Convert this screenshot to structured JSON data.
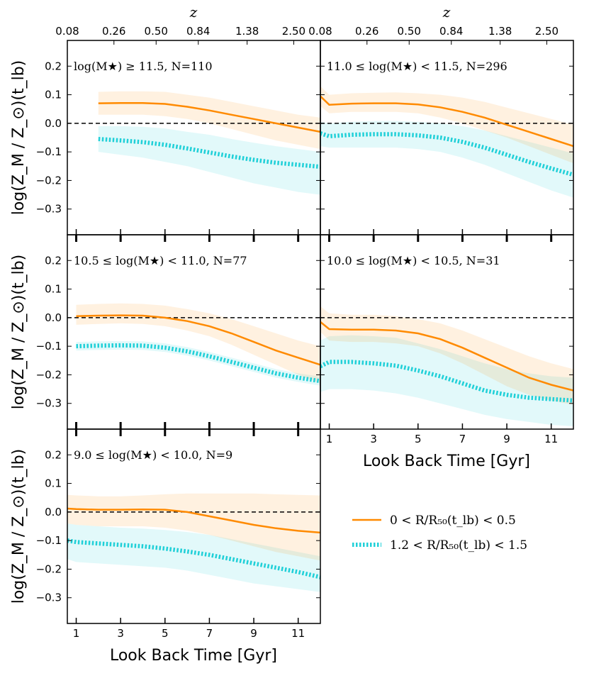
{
  "chart_data": {
    "type": "line",
    "title": "",
    "xlabel": "Look Back Time [Gyr]",
    "ylabel": "log(Z_M / Z_⊙)(t_lb)",
    "top_axis_label": "z",
    "xlim": [
      0.6,
      12.0
    ],
    "ylim": [
      -0.39,
      0.29
    ],
    "xticks": [
      1,
      3,
      5,
      7,
      9,
      11
    ],
    "xtick_labels": [
      "1",
      "3",
      "5",
      "7",
      "9",
      "11"
    ],
    "yticks": [
      -0.3,
      -0.2,
      -0.1,
      0.0,
      0.1,
      0.2
    ],
    "ytick_labels": [
      "−0.3",
      "−0.2",
      "−0.1",
      "0.0",
      "0.1",
      "0.2"
    ],
    "top_ticks": [
      {
        "t": 0.6,
        "label": "0.08"
      },
      {
        "t": 2.7,
        "label": "0.26"
      },
      {
        "t": 4.6,
        "label": "0.50"
      },
      {
        "t": 6.5,
        "label": "0.84"
      },
      {
        "t": 8.7,
        "label": "1.38"
      },
      {
        "t": 10.8,
        "label": "2.50"
      }
    ],
    "reference_line": 0.0,
    "colors": {
      "inner": "#ff8a00",
      "outer": "#20d0d8"
    },
    "legend": {
      "location": "right",
      "entries": [
        {
          "label": "0 < R/R₅₀(t_lb) < 0.5",
          "style": "solid",
          "series": "inner"
        },
        {
          "label": "1.2 < R/R₅₀(t_lb) < 1.5",
          "style": "dotted",
          "series": "outer"
        }
      ]
    },
    "panels": [
      {
        "id": "p1",
        "label": "log(M★) ≥ 11.5, N=110",
        "x": [
          2,
          3,
          4,
          5,
          6,
          7,
          8,
          9,
          10,
          11,
          12
        ],
        "inner": {
          "mid": [
            0.07,
            0.071,
            0.071,
            0.068,
            0.058,
            0.045,
            0.03,
            0.015,
            0.0,
            -0.015,
            -0.03
          ],
          "lo": [
            0.03,
            0.03,
            0.03,
            0.025,
            0.015,
            0.0,
            -0.02,
            -0.04,
            -0.06,
            -0.075,
            -0.09
          ],
          "hi": [
            0.11,
            0.112,
            0.112,
            0.11,
            0.1,
            0.09,
            0.075,
            0.06,
            0.045,
            0.03,
            0.02
          ]
        },
        "outer": {
          "mid": [
            -0.055,
            -0.06,
            -0.066,
            -0.075,
            -0.088,
            -0.102,
            -0.116,
            -0.128,
            -0.138,
            -0.145,
            -0.152
          ],
          "lo": [
            -0.1,
            -0.11,
            -0.12,
            -0.135,
            -0.15,
            -0.17,
            -0.19,
            -0.21,
            -0.225,
            -0.24,
            -0.25
          ],
          "hi": [
            -0.01,
            -0.01,
            -0.012,
            -0.018,
            -0.03,
            -0.04,
            -0.055,
            -0.068,
            -0.08,
            -0.09,
            -0.1
          ]
        }
      },
      {
        "id": "p2",
        "label": "11.0 ≤ log(M★) < 11.5, N=296",
        "x": [
          0.6,
          1,
          2,
          3,
          4,
          5,
          6,
          7,
          8,
          9,
          10,
          11,
          12
        ],
        "inner": {
          "mid": [
            0.095,
            0.065,
            0.069,
            0.07,
            0.07,
            0.066,
            0.056,
            0.04,
            0.02,
            -0.005,
            -0.03,
            -0.055,
            -0.08
          ],
          "lo": [
            0.06,
            0.035,
            0.04,
            0.04,
            0.04,
            0.035,
            0.02,
            0.0,
            -0.025,
            -0.05,
            -0.08,
            -0.11,
            -0.14
          ],
          "hi": [
            0.13,
            0.1,
            0.105,
            0.107,
            0.108,
            0.105,
            0.1,
            0.09,
            0.075,
            0.055,
            0.035,
            0.015,
            -0.005
          ]
        },
        "outer": {
          "mid": [
            -0.035,
            -0.045,
            -0.04,
            -0.038,
            -0.038,
            -0.042,
            -0.05,
            -0.065,
            -0.085,
            -0.11,
            -0.135,
            -0.158,
            -0.18
          ],
          "lo": [
            -0.08,
            -0.085,
            -0.085,
            -0.085,
            -0.085,
            -0.09,
            -0.1,
            -0.12,
            -0.145,
            -0.175,
            -0.205,
            -0.235,
            -0.26
          ],
          "hi": [
            0.005,
            0.0,
            0.005,
            0.008,
            0.008,
            0.005,
            0.0,
            -0.01,
            -0.025,
            -0.045,
            -0.065,
            -0.085,
            -0.105
          ]
        }
      },
      {
        "id": "p3",
        "label": "10.5 ≤ log(M★) < 11.0, N=77",
        "x": [
          1,
          2,
          3,
          4,
          5,
          6,
          7,
          8,
          9,
          10,
          11,
          12
        ],
        "inner": {
          "mid": [
            0.005,
            0.007,
            0.008,
            0.007,
            0.0,
            -0.012,
            -0.03,
            -0.055,
            -0.085,
            -0.115,
            -0.14,
            -0.165
          ],
          "lo": [
            -0.025,
            -0.022,
            -0.02,
            -0.022,
            -0.03,
            -0.045,
            -0.065,
            -0.095,
            -0.13,
            -0.165,
            -0.2,
            -0.23
          ],
          "hi": [
            0.045,
            0.048,
            0.05,
            0.048,
            0.042,
            0.03,
            0.015,
            -0.005,
            -0.03,
            -0.055,
            -0.08,
            -0.1
          ]
        },
        "outer": {
          "mid": [
            -0.1,
            -0.098,
            -0.097,
            -0.098,
            -0.105,
            -0.118,
            -0.135,
            -0.155,
            -0.175,
            -0.195,
            -0.21,
            -0.222
          ],
          "lo": [
            -0.115,
            -0.113,
            -0.112,
            -0.113,
            -0.12,
            -0.133,
            -0.15,
            -0.17,
            -0.19,
            -0.21,
            -0.225,
            -0.238
          ],
          "hi": [
            -0.085,
            -0.083,
            -0.082,
            -0.083,
            -0.09,
            -0.103,
            -0.12,
            -0.14,
            -0.16,
            -0.18,
            -0.195,
            -0.206
          ]
        }
      },
      {
        "id": "p4",
        "label": "10.0 ≤ log(M★) < 10.5, N=31",
        "x": [
          0.6,
          1,
          2,
          3,
          4,
          5,
          6,
          7,
          8,
          9,
          10,
          11,
          12
        ],
        "inner": {
          "mid": [
            -0.015,
            -0.04,
            -0.042,
            -0.042,
            -0.045,
            -0.055,
            -0.075,
            -0.105,
            -0.14,
            -0.175,
            -0.21,
            -0.235,
            -0.255
          ],
          "lo": [
            -0.05,
            -0.08,
            -0.085,
            -0.085,
            -0.09,
            -0.1,
            -0.125,
            -0.16,
            -0.2,
            -0.24,
            -0.27,
            -0.29,
            -0.305
          ],
          "hi": [
            0.04,
            0.015,
            0.01,
            0.01,
            0.005,
            -0.005,
            -0.02,
            -0.045,
            -0.075,
            -0.105,
            -0.135,
            -0.16,
            -0.18
          ]
        },
        "outer": {
          "mid": [
            -0.17,
            -0.155,
            -0.155,
            -0.16,
            -0.168,
            -0.185,
            -0.205,
            -0.23,
            -0.255,
            -0.27,
            -0.28,
            -0.285,
            -0.29
          ],
          "lo": [
            -0.26,
            -0.25,
            -0.25,
            -0.255,
            -0.265,
            -0.28,
            -0.3,
            -0.32,
            -0.34,
            -0.355,
            -0.365,
            -0.375,
            -0.38
          ],
          "hi": [
            -0.08,
            -0.065,
            -0.062,
            -0.065,
            -0.07,
            -0.09,
            -0.11,
            -0.135,
            -0.16,
            -0.18,
            -0.195,
            -0.205,
            -0.21
          ]
        }
      },
      {
        "id": "p5",
        "label": "9.0 ≤ log(M★) < 10.0, N=9",
        "x": [
          0.6,
          1,
          2,
          3,
          4,
          5,
          6,
          7,
          8,
          9,
          10,
          11,
          12
        ],
        "inner": {
          "mid": [
            0.012,
            0.01,
            0.008,
            0.008,
            0.009,
            0.008,
            0.0,
            -0.015,
            -0.03,
            -0.045,
            -0.057,
            -0.066,
            -0.072
          ],
          "lo": [
            -0.04,
            -0.045,
            -0.05,
            -0.05,
            -0.05,
            -0.055,
            -0.065,
            -0.08,
            -0.1,
            -0.12,
            -0.14,
            -0.155,
            -0.17
          ],
          "hi": [
            0.06,
            0.058,
            0.055,
            0.055,
            0.058,
            0.062,
            0.065,
            0.065,
            0.065,
            0.065,
            0.062,
            0.06,
            0.058
          ]
        },
        "outer": {
          "mid": [
            -0.1,
            -0.105,
            -0.11,
            -0.115,
            -0.12,
            -0.128,
            -0.138,
            -0.15,
            -0.165,
            -0.18,
            -0.195,
            -0.21,
            -0.228
          ],
          "lo": [
            -0.165,
            -0.175,
            -0.18,
            -0.185,
            -0.19,
            -0.195,
            -0.205,
            -0.22,
            -0.235,
            -0.25,
            -0.26,
            -0.27,
            -0.28
          ],
          "hi": [
            -0.04,
            -0.045,
            -0.05,
            -0.055,
            -0.058,
            -0.063,
            -0.07,
            -0.08,
            -0.095,
            -0.11,
            -0.125,
            -0.14,
            -0.155
          ]
        }
      }
    ]
  }
}
